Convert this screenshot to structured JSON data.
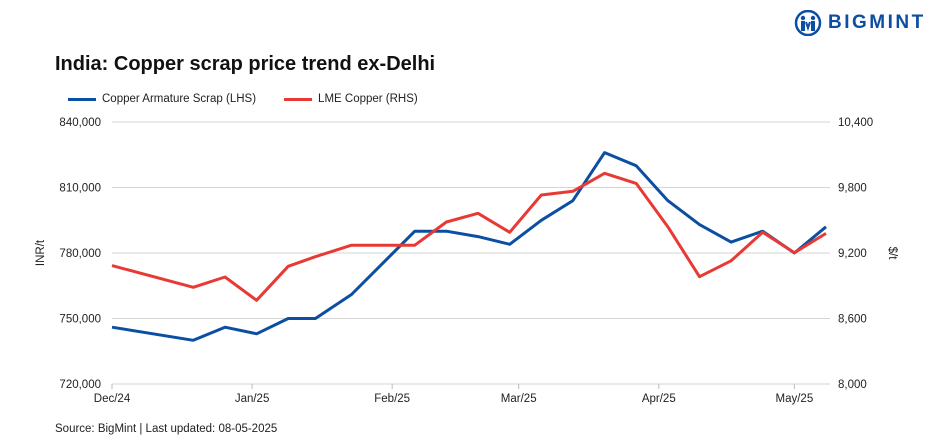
{
  "brand": {
    "name": "BIGMINT",
    "color": "#0b4ea2"
  },
  "chart_data": {
    "type": "line",
    "title": "India: Copper scrap price trend ex-Delhi",
    "ylabel_left": "INR/t",
    "ylabel_right": "$/t",
    "ylim_left": [
      720000,
      840000
    ],
    "ylim_right": [
      8000,
      10400
    ],
    "yticks_left": [
      "720,000",
      "750,000",
      "780,000",
      "810,000",
      "840,000"
    ],
    "yticks_right": [
      "8,000",
      "8,600",
      "9,200",
      "9,800",
      "10,400"
    ],
    "xtick_labels": [
      "Dec/24",
      "Jan/25",
      "Feb/25",
      "Mar/25",
      "Apr/25",
      "May/25"
    ],
    "xtick_dates": [
      "2024-12-01",
      "2025-01-01",
      "2025-02-01",
      "2025-03-01",
      "2025-04-01",
      "2025-05-01"
    ],
    "grid": true,
    "legend_position": "top-left",
    "x": [
      "2024-12-01",
      "2024-12-19",
      "2024-12-26",
      "2025-01-02",
      "2025-01-09",
      "2025-01-15",
      "2025-01-23",
      "2025-02-06",
      "2025-02-13",
      "2025-02-20",
      "2025-02-27",
      "2025-03-06",
      "2025-03-13",
      "2025-03-20",
      "2025-03-27",
      "2025-04-03",
      "2025-04-10",
      "2025-04-17",
      "2025-04-24",
      "2025-05-01",
      "2025-05-08"
    ],
    "series": [
      {
        "name": "Copper Armature Scrap (LHS)",
        "axis": "left",
        "color": "#0b4ea2",
        "values": [
          746000,
          740000,
          746000,
          743000,
          750000,
          750000,
          761000,
          790000,
          790000,
          787500,
          784000,
          795000,
          804000,
          826000,
          820000,
          804000,
          793000,
          785000,
          790000,
          780000,
          792000
        ]
      },
      {
        "name": "LME Copper (RHS)",
        "axis": "right",
        "color": "#e83a34",
        "values": [
          9085,
          8886,
          8980,
          8767,
          9078,
          9166,
          9271,
          9271,
          9484,
          9564,
          9390,
          9731,
          9765,
          9930,
          9838,
          9441,
          8983,
          9129,
          9390,
          9203,
          9380
        ]
      }
    ]
  },
  "source": "Source: BigMint | Last updated: 08-05-2025"
}
